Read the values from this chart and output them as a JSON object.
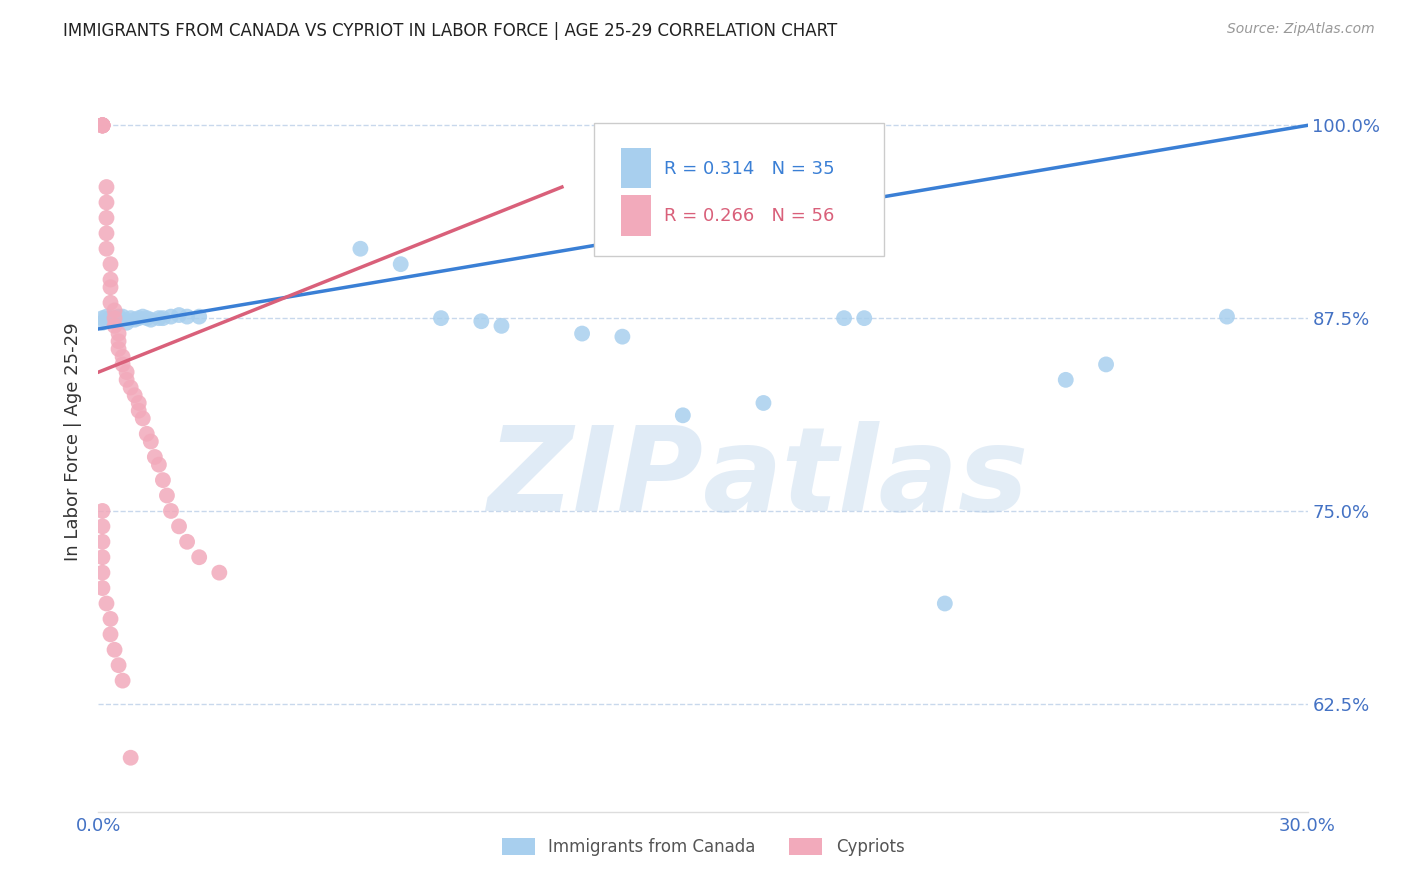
{
  "title": "IMMIGRANTS FROM CANADA VS CYPRIOT IN LABOR FORCE | AGE 25-29 CORRELATION CHART",
  "source": "Source: ZipAtlas.com",
  "ylabel": "In Labor Force | Age 25-29",
  "xlim": [
    0.0,
    0.3
  ],
  "ylim": [
    0.555,
    1.035
  ],
  "yticks": [
    0.625,
    0.75,
    0.875,
    1.0
  ],
  "ytick_labels": [
    "62.5%",
    "75.0%",
    "87.5%",
    "100.0%"
  ],
  "blue_R": 0.314,
  "blue_N": 35,
  "pink_R": 0.266,
  "pink_N": 56,
  "blue_color": "#A8CFEE",
  "pink_color": "#F2AABB",
  "blue_line_color": "#3A7FD5",
  "pink_line_color": "#D9607A",
  "legend_label_blue": "Immigrants from Canada",
  "legend_label_pink": "Cypriots",
  "watermark_zip": "ZIP",
  "watermark_atlas": "atlas",
  "blue_scatter_x": [
    0.001,
    0.001,
    0.002,
    0.003,
    0.004,
    0.005,
    0.006,
    0.007,
    0.008,
    0.009,
    0.01,
    0.011,
    0.012,
    0.013,
    0.015,
    0.016,
    0.018,
    0.02,
    0.022,
    0.025,
    0.065,
    0.075,
    0.085,
    0.095,
    0.1,
    0.12,
    0.13,
    0.145,
    0.165,
    0.185,
    0.19,
    0.21,
    0.24,
    0.25,
    0.28
  ],
  "blue_scatter_y": [
    0.875,
    0.872,
    0.876,
    0.875,
    0.875,
    0.876,
    0.876,
    0.872,
    0.875,
    0.874,
    0.875,
    0.876,
    0.875,
    0.874,
    0.875,
    0.875,
    0.876,
    0.877,
    0.876,
    0.876,
    0.92,
    0.91,
    0.875,
    0.873,
    0.87,
    0.865,
    0.863,
    0.812,
    0.82,
    0.875,
    0.875,
    0.69,
    0.835,
    0.845,
    0.876
  ],
  "pink_scatter_x": [
    0.001,
    0.001,
    0.001,
    0.001,
    0.001,
    0.001,
    0.001,
    0.001,
    0.002,
    0.002,
    0.002,
    0.002,
    0.002,
    0.003,
    0.003,
    0.003,
    0.003,
    0.004,
    0.004,
    0.004,
    0.005,
    0.005,
    0.005,
    0.006,
    0.006,
    0.007,
    0.007,
    0.008,
    0.009,
    0.01,
    0.01,
    0.011,
    0.012,
    0.013,
    0.014,
    0.015,
    0.016,
    0.017,
    0.018,
    0.02,
    0.022,
    0.025,
    0.03,
    0.001,
    0.001,
    0.001,
    0.001,
    0.001,
    0.001,
    0.002,
    0.003,
    0.003,
    0.004,
    0.005,
    0.006,
    0.008
  ],
  "pink_scatter_y": [
    1.0,
    1.0,
    1.0,
    1.0,
    1.0,
    1.0,
    1.0,
    1.0,
    0.96,
    0.95,
    0.94,
    0.93,
    0.92,
    0.91,
    0.9,
    0.895,
    0.885,
    0.88,
    0.875,
    0.87,
    0.865,
    0.86,
    0.855,
    0.85,
    0.845,
    0.84,
    0.835,
    0.83,
    0.825,
    0.82,
    0.815,
    0.81,
    0.8,
    0.795,
    0.785,
    0.78,
    0.77,
    0.76,
    0.75,
    0.74,
    0.73,
    0.72,
    0.71,
    0.75,
    0.74,
    0.73,
    0.72,
    0.71,
    0.7,
    0.69,
    0.68,
    0.67,
    0.66,
    0.65,
    0.64,
    0.59
  ],
  "background_color": "#ffffff",
  "grid_color": "#C8D8EC",
  "title_color": "#222222",
  "tick_color": "#4472C4",
  "source_color": "#999999"
}
